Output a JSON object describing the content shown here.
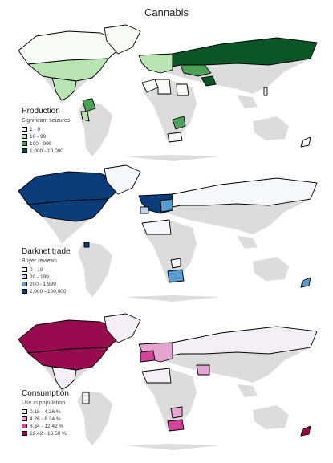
{
  "title": "Cannabis",
  "land_color": "#dcdcdc",
  "panels": [
    {
      "heading": "Production",
      "subheading": "Significant seizures",
      "legend": [
        {
          "label": "1 - 9",
          "color": "#f7fcf5"
        },
        {
          "label": "10 - 99",
          "color": "#b8e3b2"
        },
        {
          "label": "100 - 999",
          "color": "#4ba35a"
        },
        {
          "label": "1,000 - 10,000",
          "color": "#0a5626"
        }
      ]
    },
    {
      "heading": "Darknet trade",
      "subheading": "Buyer reviews",
      "legend": [
        {
          "label": "0 - 19",
          "color": "#f4f8fd"
        },
        {
          "label": "20 - 199",
          "color": "#c3d8ee"
        },
        {
          "label": "200 - 1,999",
          "color": "#5a9bd0"
        },
        {
          "label": "2,000 - 100,000",
          "color": "#0b3d7a"
        }
      ]
    },
    {
      "heading": "Consumption",
      "subheading": "Use in population",
      "legend": [
        {
          "label": "0.18 - 4.26 %",
          "color": "#f4eef6"
        },
        {
          "label": "4.26 - 8.34 %",
          "color": "#e3a5cf"
        },
        {
          "label": "8.34 - 12.42 %",
          "color": "#d4449a"
        },
        {
          "label": "12.42 - 16.50 %",
          "color": "#980b4e"
        }
      ]
    }
  ]
}
